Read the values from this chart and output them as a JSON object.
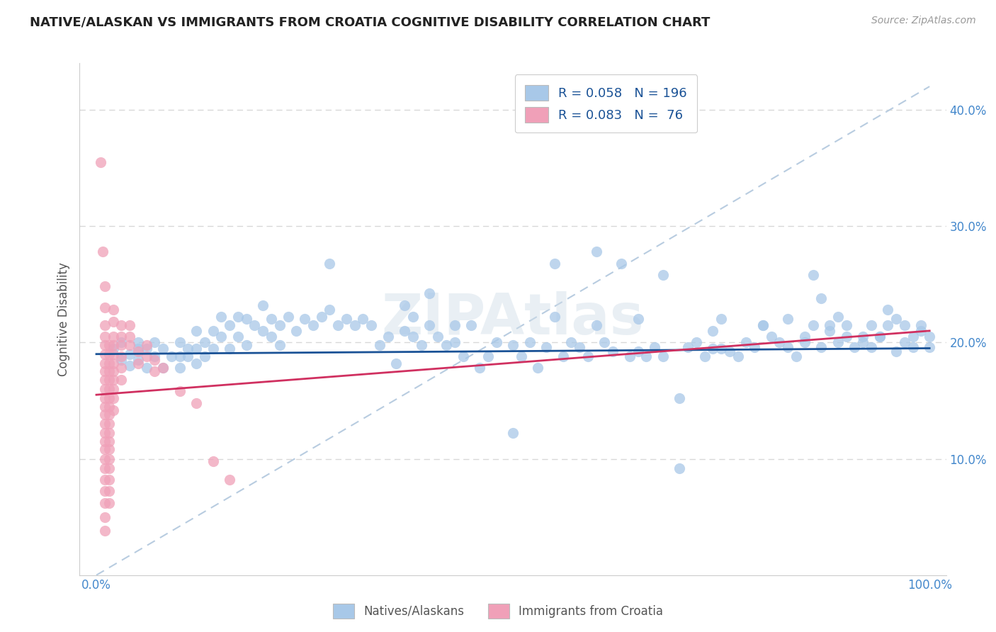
{
  "title": "NATIVE/ALASKAN VS IMMIGRANTS FROM CROATIA COGNITIVE DISABILITY CORRELATION CHART",
  "source": "Source: ZipAtlas.com",
  "ylabel": "Cognitive Disability",
  "watermark": "ZIPAtlas",
  "xlim": [
    -0.02,
    1.02
  ],
  "ylim": [
    0.0,
    0.44
  ],
  "yticks": [
    0.1,
    0.2,
    0.3,
    0.4
  ],
  "yticklabels": [
    "10.0%",
    "20.0%",
    "30.0%",
    "40.0%"
  ],
  "blue_color": "#a8c8e8",
  "pink_color": "#f0a0b8",
  "blue_line_color": "#1a5296",
  "pink_line_color": "#d03060",
  "diag_color": "#b8cce0",
  "legend_R1": "0.058",
  "legend_N1": "196",
  "legend_R2": "0.083",
  "legend_N2": "76",
  "legend_text_color": "#1a5296",
  "title_color": "#222222",
  "grid_color": "#d8d8d8",
  "blue_trend": [
    0.0,
    0.19,
    1.0,
    0.195
  ],
  "pink_trend": [
    0.0,
    0.155,
    1.0,
    0.21
  ],
  "blue_scatter": [
    [
      0.02,
      0.195
    ],
    [
      0.03,
      0.185
    ],
    [
      0.03,
      0.2
    ],
    [
      0.04,
      0.19
    ],
    [
      0.04,
      0.18
    ],
    [
      0.05,
      0.2
    ],
    [
      0.05,
      0.195
    ],
    [
      0.05,
      0.185
    ],
    [
      0.06,
      0.195
    ],
    [
      0.06,
      0.178
    ],
    [
      0.07,
      0.2
    ],
    [
      0.07,
      0.188
    ],
    [
      0.08,
      0.195
    ],
    [
      0.08,
      0.178
    ],
    [
      0.09,
      0.188
    ],
    [
      0.1,
      0.2
    ],
    [
      0.1,
      0.188
    ],
    [
      0.1,
      0.178
    ],
    [
      0.11,
      0.195
    ],
    [
      0.11,
      0.188
    ],
    [
      0.12,
      0.21
    ],
    [
      0.12,
      0.195
    ],
    [
      0.12,
      0.182
    ],
    [
      0.13,
      0.2
    ],
    [
      0.13,
      0.188
    ],
    [
      0.14,
      0.21
    ],
    [
      0.14,
      0.195
    ],
    [
      0.15,
      0.222
    ],
    [
      0.15,
      0.205
    ],
    [
      0.16,
      0.215
    ],
    [
      0.16,
      0.195
    ],
    [
      0.17,
      0.222
    ],
    [
      0.17,
      0.205
    ],
    [
      0.18,
      0.22
    ],
    [
      0.18,
      0.198
    ],
    [
      0.19,
      0.215
    ],
    [
      0.2,
      0.232
    ],
    [
      0.2,
      0.21
    ],
    [
      0.21,
      0.22
    ],
    [
      0.21,
      0.205
    ],
    [
      0.22,
      0.215
    ],
    [
      0.22,
      0.198
    ],
    [
      0.23,
      0.222
    ],
    [
      0.24,
      0.21
    ],
    [
      0.25,
      0.22
    ],
    [
      0.26,
      0.215
    ],
    [
      0.27,
      0.222
    ],
    [
      0.28,
      0.268
    ],
    [
      0.29,
      0.215
    ],
    [
      0.3,
      0.22
    ],
    [
      0.31,
      0.215
    ],
    [
      0.32,
      0.22
    ],
    [
      0.33,
      0.215
    ],
    [
      0.34,
      0.198
    ],
    [
      0.35,
      0.205
    ],
    [
      0.36,
      0.182
    ],
    [
      0.37,
      0.21
    ],
    [
      0.38,
      0.205
    ],
    [
      0.39,
      0.198
    ],
    [
      0.4,
      0.242
    ],
    [
      0.4,
      0.215
    ],
    [
      0.41,
      0.205
    ],
    [
      0.42,
      0.198
    ],
    [
      0.43,
      0.2
    ],
    [
      0.44,
      0.188
    ],
    [
      0.45,
      0.215
    ],
    [
      0.46,
      0.178
    ],
    [
      0.47,
      0.188
    ],
    [
      0.48,
      0.2
    ],
    [
      0.5,
      0.198
    ],
    [
      0.51,
      0.188
    ],
    [
      0.52,
      0.2
    ],
    [
      0.53,
      0.178
    ],
    [
      0.54,
      0.196
    ],
    [
      0.55,
      0.268
    ],
    [
      0.56,
      0.188
    ],
    [
      0.57,
      0.2
    ],
    [
      0.58,
      0.196
    ],
    [
      0.59,
      0.188
    ],
    [
      0.6,
      0.278
    ],
    [
      0.61,
      0.2
    ],
    [
      0.62,
      0.192
    ],
    [
      0.63,
      0.268
    ],
    [
      0.64,
      0.188
    ],
    [
      0.65,
      0.192
    ],
    [
      0.66,
      0.188
    ],
    [
      0.67,
      0.196
    ],
    [
      0.68,
      0.188
    ],
    [
      0.7,
      0.152
    ],
    [
      0.71,
      0.196
    ],
    [
      0.72,
      0.2
    ],
    [
      0.73,
      0.188
    ],
    [
      0.74,
      0.195
    ],
    [
      0.75,
      0.195
    ],
    [
      0.76,
      0.192
    ],
    [
      0.77,
      0.188
    ],
    [
      0.78,
      0.2
    ],
    [
      0.79,
      0.196
    ],
    [
      0.8,
      0.215
    ],
    [
      0.81,
      0.205
    ],
    [
      0.82,
      0.2
    ],
    [
      0.83,
      0.196
    ],
    [
      0.84,
      0.188
    ],
    [
      0.85,
      0.2
    ],
    [
      0.86,
      0.258
    ],
    [
      0.87,
      0.196
    ],
    [
      0.88,
      0.21
    ],
    [
      0.89,
      0.2
    ],
    [
      0.9,
      0.205
    ],
    [
      0.91,
      0.196
    ],
    [
      0.92,
      0.2
    ],
    [
      0.93,
      0.196
    ],
    [
      0.94,
      0.205
    ],
    [
      0.95,
      0.228
    ],
    [
      0.96,
      0.192
    ],
    [
      0.97,
      0.2
    ],
    [
      0.98,
      0.196
    ],
    [
      0.99,
      0.21
    ],
    [
      1.0,
      0.196
    ],
    [
      0.28,
      0.228
    ],
    [
      0.37,
      0.232
    ],
    [
      0.38,
      0.222
    ],
    [
      0.43,
      0.215
    ],
    [
      0.55,
      0.222
    ],
    [
      0.6,
      0.215
    ],
    [
      0.65,
      0.22
    ],
    [
      0.68,
      0.258
    ],
    [
      0.74,
      0.21
    ],
    [
      0.75,
      0.22
    ],
    [
      0.8,
      0.215
    ],
    [
      0.83,
      0.22
    ],
    [
      0.85,
      0.205
    ],
    [
      0.86,
      0.215
    ],
    [
      0.87,
      0.238
    ],
    [
      0.88,
      0.215
    ],
    [
      0.89,
      0.222
    ],
    [
      0.9,
      0.215
    ],
    [
      0.92,
      0.205
    ],
    [
      0.93,
      0.215
    ],
    [
      0.94,
      0.205
    ],
    [
      0.95,
      0.215
    ],
    [
      0.96,
      0.22
    ],
    [
      0.97,
      0.215
    ],
    [
      0.98,
      0.205
    ],
    [
      0.99,
      0.215
    ],
    [
      1.0,
      0.205
    ],
    [
      0.5,
      0.122
    ],
    [
      0.7,
      0.092
    ]
  ],
  "pink_scatter": [
    [
      0.005,
      0.355
    ],
    [
      0.008,
      0.278
    ],
    [
      0.01,
      0.248
    ],
    [
      0.01,
      0.23
    ],
    [
      0.01,
      0.215
    ],
    [
      0.01,
      0.205
    ],
    [
      0.01,
      0.198
    ],
    [
      0.01,
      0.19
    ],
    [
      0.01,
      0.182
    ],
    [
      0.01,
      0.175
    ],
    [
      0.01,
      0.168
    ],
    [
      0.01,
      0.16
    ],
    [
      0.01,
      0.152
    ],
    [
      0.01,
      0.145
    ],
    [
      0.01,
      0.138
    ],
    [
      0.01,
      0.13
    ],
    [
      0.01,
      0.122
    ],
    [
      0.01,
      0.115
    ],
    [
      0.01,
      0.108
    ],
    [
      0.01,
      0.1
    ],
    [
      0.01,
      0.092
    ],
    [
      0.01,
      0.082
    ],
    [
      0.01,
      0.072
    ],
    [
      0.01,
      0.062
    ],
    [
      0.01,
      0.05
    ],
    [
      0.01,
      0.038
    ],
    [
      0.015,
      0.198
    ],
    [
      0.015,
      0.19
    ],
    [
      0.015,
      0.182
    ],
    [
      0.015,
      0.175
    ],
    [
      0.015,
      0.168
    ],
    [
      0.015,
      0.16
    ],
    [
      0.015,
      0.152
    ],
    [
      0.015,
      0.145
    ],
    [
      0.015,
      0.138
    ],
    [
      0.015,
      0.13
    ],
    [
      0.015,
      0.122
    ],
    [
      0.015,
      0.115
    ],
    [
      0.015,
      0.108
    ],
    [
      0.015,
      0.1
    ],
    [
      0.015,
      0.092
    ],
    [
      0.015,
      0.082
    ],
    [
      0.015,
      0.072
    ],
    [
      0.015,
      0.062
    ],
    [
      0.02,
      0.228
    ],
    [
      0.02,
      0.218
    ],
    [
      0.02,
      0.205
    ],
    [
      0.02,
      0.198
    ],
    [
      0.02,
      0.19
    ],
    [
      0.02,
      0.182
    ],
    [
      0.02,
      0.175
    ],
    [
      0.02,
      0.168
    ],
    [
      0.02,
      0.16
    ],
    [
      0.02,
      0.152
    ],
    [
      0.02,
      0.142
    ],
    [
      0.03,
      0.215
    ],
    [
      0.03,
      0.205
    ],
    [
      0.03,
      0.198
    ],
    [
      0.03,
      0.188
    ],
    [
      0.03,
      0.178
    ],
    [
      0.03,
      0.168
    ],
    [
      0.04,
      0.215
    ],
    [
      0.04,
      0.205
    ],
    [
      0.04,
      0.198
    ],
    [
      0.05,
      0.192
    ],
    [
      0.05,
      0.182
    ],
    [
      0.06,
      0.198
    ],
    [
      0.06,
      0.188
    ],
    [
      0.07,
      0.185
    ],
    [
      0.07,
      0.175
    ],
    [
      0.08,
      0.178
    ],
    [
      0.1,
      0.158
    ],
    [
      0.12,
      0.148
    ],
    [
      0.14,
      0.098
    ],
    [
      0.16,
      0.082
    ]
  ]
}
